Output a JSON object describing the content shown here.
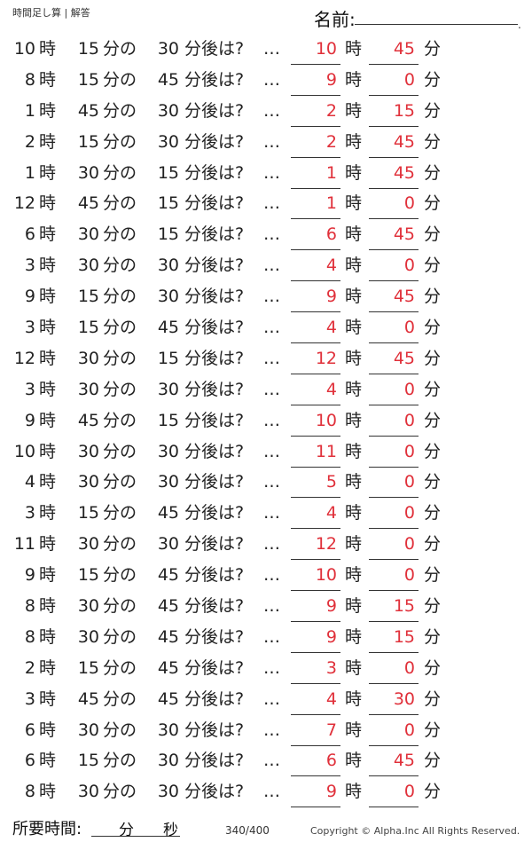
{
  "header": {
    "title": "時間足し算 | 解答",
    "name_label": "名前:",
    "name_dot": "."
  },
  "labels": {
    "hour": "時",
    "min_of": "分の",
    "after": "分後は?",
    "dots": "…",
    "min": "分"
  },
  "problems": [
    {
      "h": "10",
      "m": "15",
      "add": "30",
      "ah": "10",
      "am": "45"
    },
    {
      "h": "8",
      "m": "15",
      "add": "45",
      "ah": "9",
      "am": "0"
    },
    {
      "h": "1",
      "m": "45",
      "add": "30",
      "ah": "2",
      "am": "15"
    },
    {
      "h": "2",
      "m": "15",
      "add": "30",
      "ah": "2",
      "am": "45"
    },
    {
      "h": "1",
      "m": "30",
      "add": "15",
      "ah": "1",
      "am": "45"
    },
    {
      "h": "12",
      "m": "45",
      "add": "15",
      "ah": "1",
      "am": "0"
    },
    {
      "h": "6",
      "m": "30",
      "add": "15",
      "ah": "6",
      "am": "45"
    },
    {
      "h": "3",
      "m": "30",
      "add": "30",
      "ah": "4",
      "am": "0"
    },
    {
      "h": "9",
      "m": "15",
      "add": "30",
      "ah": "9",
      "am": "45"
    },
    {
      "h": "3",
      "m": "15",
      "add": "45",
      "ah": "4",
      "am": "0"
    },
    {
      "h": "12",
      "m": "30",
      "add": "15",
      "ah": "12",
      "am": "45"
    },
    {
      "h": "3",
      "m": "30",
      "add": "30",
      "ah": "4",
      "am": "0"
    },
    {
      "h": "9",
      "m": "45",
      "add": "15",
      "ah": "10",
      "am": "0"
    },
    {
      "h": "10",
      "m": "30",
      "add": "30",
      "ah": "11",
      "am": "0"
    },
    {
      "h": "4",
      "m": "30",
      "add": "30",
      "ah": "5",
      "am": "0"
    },
    {
      "h": "3",
      "m": "15",
      "add": "45",
      "ah": "4",
      "am": "0"
    },
    {
      "h": "11",
      "m": "30",
      "add": "30",
      "ah": "12",
      "am": "0"
    },
    {
      "h": "9",
      "m": "15",
      "add": "45",
      "ah": "10",
      "am": "0"
    },
    {
      "h": "8",
      "m": "30",
      "add": "45",
      "ah": "9",
      "am": "15"
    },
    {
      "h": "8",
      "m": "30",
      "add": "45",
      "ah": "9",
      "am": "15"
    },
    {
      "h": "2",
      "m": "15",
      "add": "45",
      "ah": "3",
      "am": "0"
    },
    {
      "h": "3",
      "m": "45",
      "add": "45",
      "ah": "4",
      "am": "30"
    },
    {
      "h": "6",
      "m": "30",
      "add": "30",
      "ah": "7",
      "am": "0"
    },
    {
      "h": "6",
      "m": "15",
      "add": "30",
      "ah": "6",
      "am": "45"
    },
    {
      "h": "8",
      "m": "30",
      "add": "30",
      "ah": "9",
      "am": "0"
    }
  ],
  "footer": {
    "time_label": "所要時間:",
    "min_label": "分",
    "sec_label": "秒",
    "page_count": "340/400",
    "copyright": "Copyright © Alpha.Inc All Rights Reserved."
  },
  "colors": {
    "answer": "#e0303a"
  }
}
